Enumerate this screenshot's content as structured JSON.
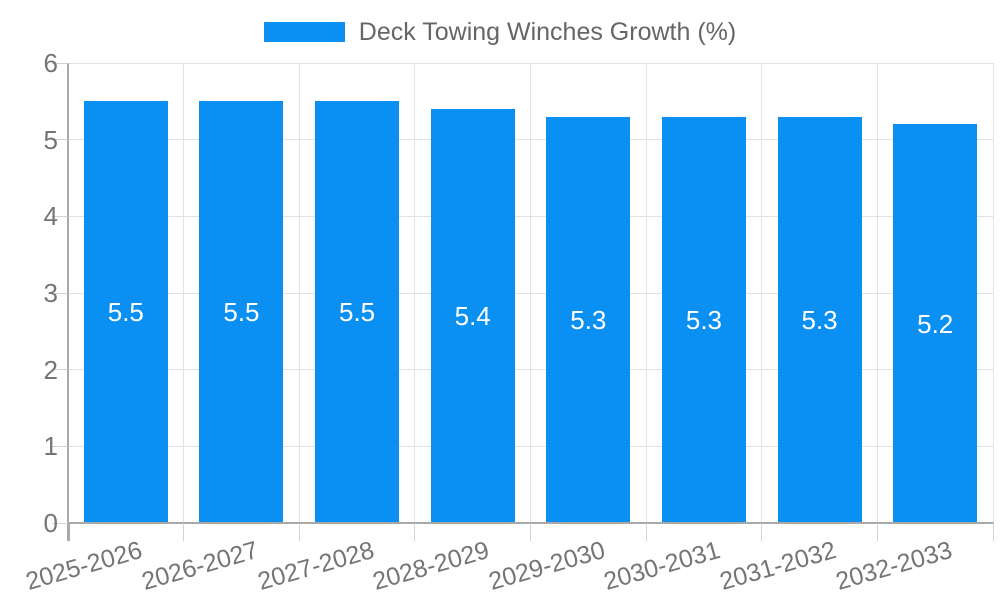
{
  "legend": {
    "label": "Deck Towing Winches Growth (%)"
  },
  "chart_data": {
    "type": "bar",
    "title": "Deck Towing Winches Growth (%)",
    "categories": [
      "2025-2026",
      "2026-2027",
      "2027-2028",
      "2028-2029",
      "2029-2030",
      "2030-2031",
      "2031-2032",
      "2032-2033"
    ],
    "series": [
      {
        "name": "Deck Towing Winches Growth (%)",
        "values": [
          5.5,
          5.5,
          5.5,
          5.4,
          5.3,
          5.3,
          5.3,
          5.2
        ]
      }
    ],
    "bar_labels": [
      "5.5",
      "5.5",
      "5.5",
      "5.4",
      "5.3",
      "5.3",
      "5.3",
      "5.2"
    ],
    "xlabel": "",
    "ylabel": "",
    "ylim": [
      0,
      6
    ],
    "yticks": [
      0,
      1,
      2,
      3,
      4,
      5,
      6
    ],
    "grid": true,
    "legend_position": "top",
    "x_tick_rotation_deg": -16
  },
  "colors": {
    "bar": "#0a8ff2",
    "bar_label": "#ffffff",
    "grid": "#e2e2e2",
    "tick": "#d2d2d2",
    "axis": "#a9a9a9",
    "tick_label": "#757575",
    "legend_text": "#666666",
    "background": "#ffffff"
  }
}
